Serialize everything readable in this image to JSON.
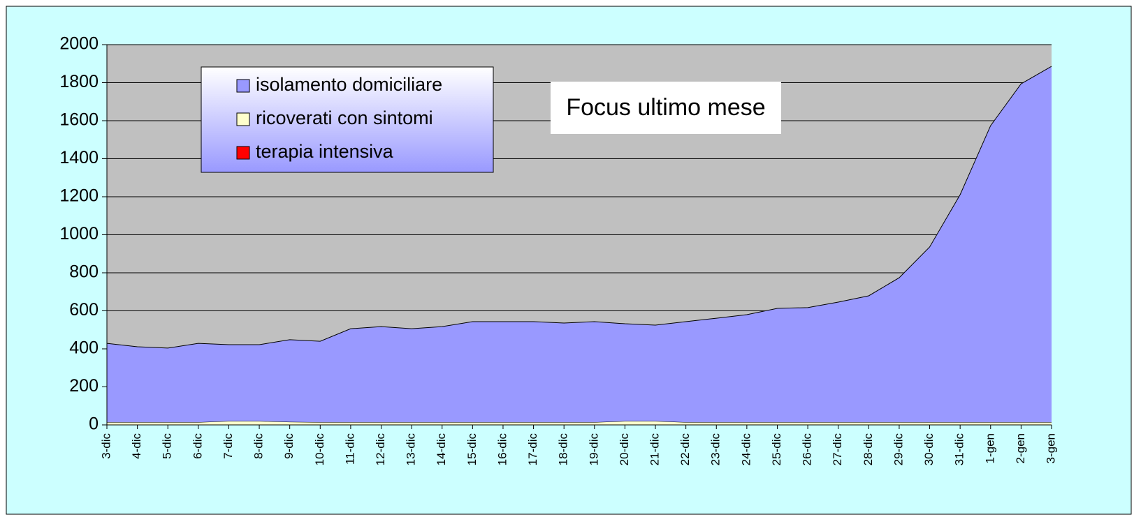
{
  "chart_data": {
    "type": "stacked_area",
    "title": "Focus ultimo mese",
    "categories": [
      "3-dic",
      "4-dic",
      "5-dic",
      "6-dic",
      "7-dic",
      "8-dic",
      "9-dic",
      "10-dic",
      "11-dic",
      "12-dic",
      "13-dic",
      "14-dic",
      "15-dic",
      "16-dic",
      "17-dic",
      "18-dic",
      "19-dic",
      "20-dic",
      "21-dic",
      "22-dic",
      "23-dic",
      "24-dic",
      "25-dic",
      "26-dic",
      "27-dic",
      "28-dic",
      "29-dic",
      "30-dic",
      "31-dic",
      "1-gen",
      "2-gen",
      "3-gen"
    ],
    "series": [
      {
        "name": "isolamento domiciliare",
        "color": "#9999ff",
        "values": [
          415,
          397,
          390,
          415,
          402,
          402,
          432,
          426,
          492,
          503,
          492,
          503,
          529,
          529,
          529,
          522,
          529,
          512,
          505,
          529,
          547,
          566,
          599,
          603,
          632,
          665,
          760,
          922,
          1197,
          1560,
          1780,
          1872
        ]
      },
      {
        "name": "ricoverati con sintomi",
        "color": "#ffffcc",
        "values": [
          12,
          12,
          12,
          12,
          18,
          18,
          14,
          12,
          12,
          12,
          12,
          12,
          12,
          12,
          12,
          12,
          12,
          18,
          18,
          12,
          12,
          12,
          12,
          12,
          12,
          12,
          12,
          12,
          12,
          12,
          12,
          12
        ]
      },
      {
        "name": "terapia intensiva",
        "color": "#ff0000",
        "values": [
          2,
          2,
          2,
          2,
          2,
          2,
          2,
          2,
          2,
          2,
          2,
          2,
          2,
          2,
          2,
          2,
          2,
          2,
          2,
          2,
          2,
          2,
          2,
          2,
          2,
          2,
          2,
          2,
          2,
          2,
          2,
          2
        ]
      }
    ],
    "ylim": [
      0,
      2000
    ],
    "yticks": [
      0,
      200,
      400,
      600,
      800,
      1000,
      1200,
      1400,
      1600,
      1800,
      2000
    ],
    "grid": true
  }
}
